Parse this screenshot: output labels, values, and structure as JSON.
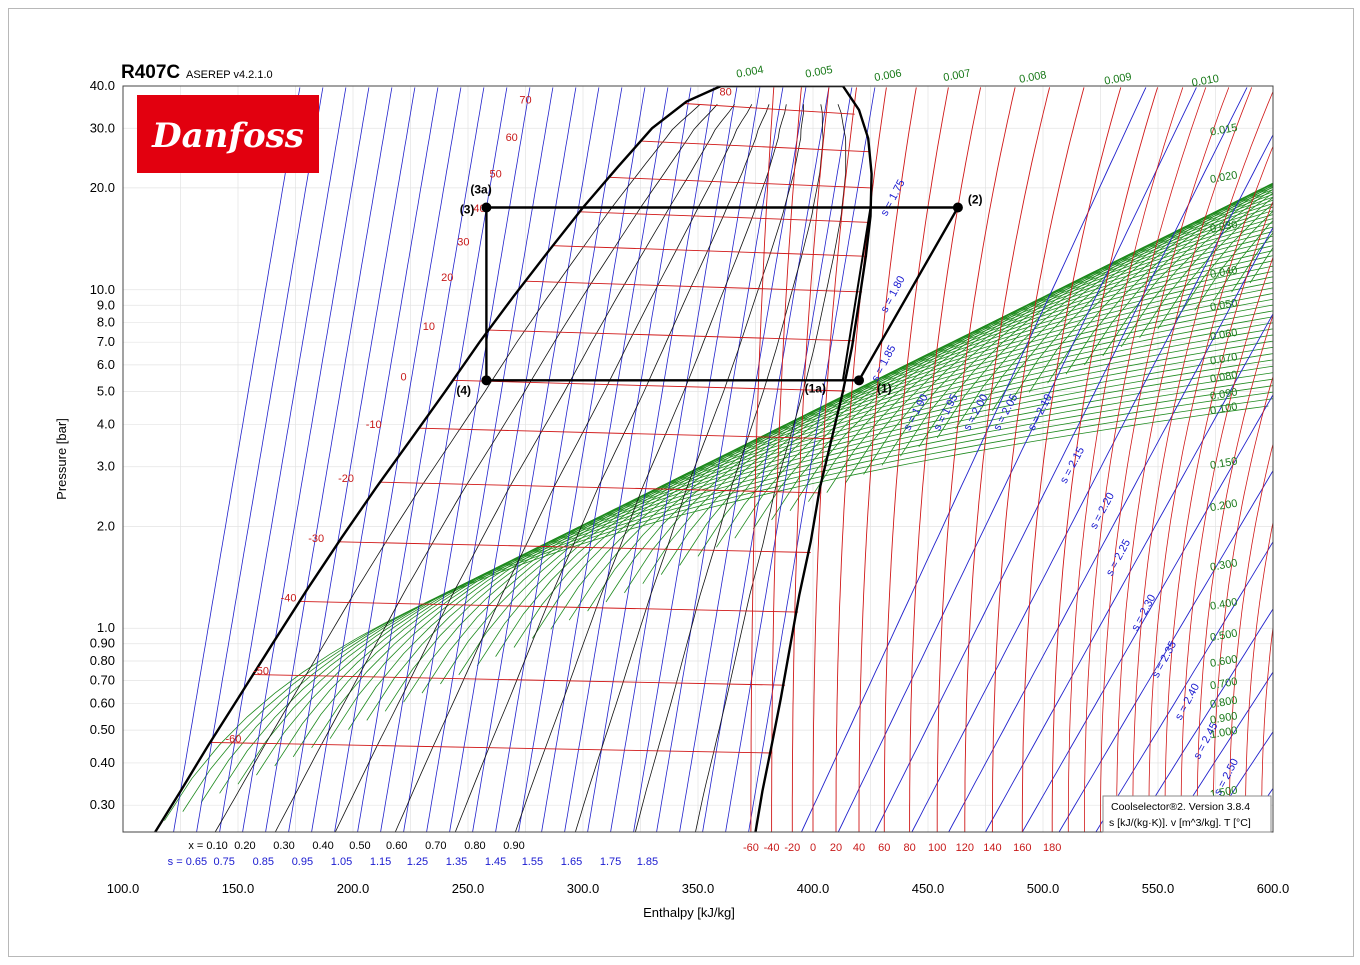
{
  "header": {
    "refrigerant": "R407C",
    "version": "ASEREP v4.2.1.0"
  },
  "logo": {
    "text": "Danfoss",
    "bg_color": "#e2000f",
    "text_color": "#ffffff"
  },
  "info_box": {
    "line1": "Coolselector®2. Version 3.8.4",
    "line2": "s [kJ/(kg·K)]. v [m^3/kg]. T [°C]"
  },
  "chart_data": {
    "type": "line",
    "title": "R407C",
    "xlabel": "Enthalpy [kJ/kg]",
    "ylabel": "Pressure [bar]",
    "xlim": [
      100,
      600
    ],
    "ylim": [
      0.25,
      40
    ],
    "y_scale": "log",
    "grid": true,
    "x_ticks": [
      "100.0",
      "150.0",
      "200.0",
      "250.0",
      "300.0",
      "350.0",
      "400.0",
      "450.0",
      "500.0",
      "550.0",
      "600.0"
    ],
    "y_ticks": [
      {
        "v": 40,
        "label": "40.0"
      },
      {
        "v": 30,
        "label": "30.0"
      },
      {
        "v": 20,
        "label": "20.0"
      },
      {
        "v": 10,
        "label": "10.0"
      },
      {
        "v": 9,
        "label": "9.0"
      },
      {
        "v": 8,
        "label": "8.0"
      },
      {
        "v": 7,
        "label": "7.0"
      },
      {
        "v": 6,
        "label": "6.0"
      },
      {
        "v": 5,
        "label": "5.0"
      },
      {
        "v": 4,
        "label": "4.0"
      },
      {
        "v": 3,
        "label": "3.0"
      },
      {
        "v": 2,
        "label": "2.0"
      },
      {
        "v": 1,
        "label": "1.0"
      },
      {
        "v": 0.9,
        "label": "0.90"
      },
      {
        "v": 0.8,
        "label": "0.80"
      },
      {
        "v": 0.7,
        "label": "0.70"
      },
      {
        "v": 0.6,
        "label": "0.60"
      },
      {
        "v": 0.5,
        "label": "0.50"
      },
      {
        "v": 0.4,
        "label": "0.40"
      },
      {
        "v": 0.3,
        "label": "0.30"
      }
    ],
    "saturation_dome": {
      "liquid": [
        [
          114,
          0.25
        ],
        [
          125,
          0.33
        ],
        [
          137,
          0.45
        ],
        [
          150,
          0.62
        ],
        [
          165,
          0.9
        ],
        [
          180,
          1.3
        ],
        [
          195,
          1.85
        ],
        [
          210,
          2.6
        ],
        [
          225,
          3.6
        ],
        [
          240,
          5.0
        ],
        [
          255,
          7.0
        ],
        [
          270,
          9.6
        ],
        [
          285,
          13.0
        ],
        [
          300,
          17.5
        ],
        [
          315,
          23
        ],
        [
          330,
          30
        ],
        [
          345,
          36
        ],
        [
          360,
          40
        ]
      ],
      "vapor": [
        [
          375,
          0.25
        ],
        [
          378,
          0.33
        ],
        [
          382,
          0.45
        ],
        [
          386,
          0.62
        ],
        [
          390,
          0.88
        ],
        [
          394,
          1.25
        ],
        [
          399,
          1.8
        ],
        [
          403,
          2.6
        ],
        [
          408,
          3.6
        ],
        [
          413,
          5.0
        ],
        [
          417,
          6.8
        ],
        [
          420,
          9.2
        ],
        [
          423,
          12.6
        ],
        [
          425,
          16.5
        ],
        [
          425.5,
          22
        ],
        [
          424,
          28
        ],
        [
          420,
          34
        ],
        [
          413,
          40
        ]
      ]
    },
    "quality_labels": [
      "x = 0.10",
      "0.20",
      "0.30",
      "0.40",
      "0.50",
      "0.60",
      "0.70",
      "0.80",
      "0.90"
    ],
    "quality_label_x": [
      137,
      153,
      170,
      187,
      203,
      219,
      236,
      253,
      270
    ],
    "entropy_bottom_labels": [
      "s = 0.65",
      "0.75",
      "0.85",
      "0.95",
      "1.05",
      "1.15",
      "1.25",
      "1.35",
      "1.45",
      "1.55",
      "1.65",
      "1.75",
      "1.85"
    ],
    "entropy_bottom_x": [
      128,
      144,
      161,
      178,
      195,
      212,
      228,
      245,
      262,
      278,
      295,
      312,
      328
    ],
    "entropy_line_labels": [
      {
        "label": "s = 1.75",
        "h": 436,
        "p": 18.5
      },
      {
        "label": "s = 1.80",
        "h": 436,
        "p": 9.6
      },
      {
        "label": "s = 1.85",
        "h": 432,
        "p": 6.0
      },
      {
        "label": "s = 1.90",
        "h": 446,
        "p": 4.3
      },
      {
        "label": "s = 1.95",
        "h": 459,
        "p": 4.3
      },
      {
        "label": "s = 2.00",
        "h": 472,
        "p": 4.3
      },
      {
        "label": "s = 2.05",
        "h": 485,
        "p": 4.3
      },
      {
        "label": "s = 2.10",
        "h": 500,
        "p": 4.3
      },
      {
        "label": "s = 2.15",
        "h": 514,
        "p": 3.0
      },
      {
        "label": "s = 2.20",
        "h": 527,
        "p": 2.2
      },
      {
        "label": "s = 2.25",
        "h": 534,
        "p": 1.6
      },
      {
        "label": "s = 2.30",
        "h": 545,
        "p": 1.1
      },
      {
        "label": "s = 2.35",
        "h": 554,
        "p": 0.8
      },
      {
        "label": "s = 2.40",
        "h": 564,
        "p": 0.6
      },
      {
        "label": "s = 2.45",
        "h": 572,
        "p": 0.46
      },
      {
        "label": "s = 2.50",
        "h": 581,
        "p": 0.36
      }
    ],
    "isotherm_labels": [
      {
        "label": "70",
        "h": 275,
        "p": 35.5
      },
      {
        "label": "60",
        "h": 269,
        "p": 27.5
      },
      {
        "label": "50",
        "h": 262,
        "p": 21.5
      },
      {
        "label": "40",
        "h": 255,
        "p": 17.0
      },
      {
        "label": "30",
        "h": 248,
        "p": 13.5
      },
      {
        "label": "20",
        "h": 241,
        "p": 10.6
      },
      {
        "label": "10",
        "h": 233,
        "p": 7.6
      },
      {
        "label": "0",
        "h": 222,
        "p": 5.4
      },
      {
        "label": "-10",
        "h": 209,
        "p": 3.9
      },
      {
        "label": "-20",
        "h": 197,
        "p": 2.7
      },
      {
        "label": "-30",
        "h": 184,
        "p": 1.8
      },
      {
        "label": "-40",
        "h": 172,
        "p": 1.2
      },
      {
        "label": "-50",
        "h": 160,
        "p": 0.73
      },
      {
        "label": "-60",
        "h": 148,
        "p": 0.46
      },
      {
        "label": "80",
        "h": 362,
        "p": 37.5
      }
    ],
    "temperature_bottom_labels": [
      "-60",
      "-40",
      "-20",
      "0",
      "20",
      "40",
      "60",
      "80",
      "100",
      "120",
      "140",
      "160",
      "180"
    ],
    "temperature_bottom_x": [
      373,
      382,
      391,
      400,
      410,
      420,
      431,
      442,
      454,
      466,
      478,
      491,
      504
    ],
    "volume_labels": [
      {
        "label": "0.004",
        "p": 43,
        "h": 365
      },
      {
        "label": "0.005",
        "p": 43,
        "h": 395
      },
      {
        "label": "0.006",
        "p": 42,
        "h": 425
      },
      {
        "label": "0.007",
        "p": 42,
        "h": 455
      },
      {
        "label": "0.008",
        "p": 41.5,
        "h": 488
      },
      {
        "label": "0.009",
        "p": 41,
        "h": 525
      },
      {
        "label": "0.010",
        "p": 40.5,
        "h": 563
      },
      {
        "label": "0.015",
        "p": 29,
        "h": 571
      },
      {
        "label": "0.020",
        "p": 21,
        "h": 571
      },
      {
        "label": "0.030",
        "p": 15,
        "h": 571
      },
      {
        "label": "0.040",
        "p": 11,
        "h": 571
      },
      {
        "label": "0.050",
        "p": 8.8,
        "h": 571
      },
      {
        "label": "0.060",
        "p": 7.2,
        "h": 571
      },
      {
        "label": "0.070",
        "p": 6.1,
        "h": 571
      },
      {
        "label": "0.080",
        "p": 5.4,
        "h": 571
      },
      {
        "label": "0.090",
        "p": 4.8,
        "h": 571
      },
      {
        "label": "0.100",
        "p": 4.35,
        "h": 571
      },
      {
        "label": "0.150",
        "p": 3.0,
        "h": 571
      },
      {
        "label": "0.200",
        "p": 2.25,
        "h": 571
      },
      {
        "label": "0.300",
        "p": 1.5,
        "h": 571
      },
      {
        "label": "0.400",
        "p": 1.15,
        "h": 571
      },
      {
        "label": "0.500",
        "p": 0.93,
        "h": 571
      },
      {
        "label": "0.600",
        "p": 0.78,
        "h": 571
      },
      {
        "label": "0.700",
        "p": 0.67,
        "h": 571
      },
      {
        "label": "0.800",
        "p": 0.59,
        "h": 571
      },
      {
        "label": "0.900",
        "p": 0.53,
        "h": 571
      },
      {
        "label": "1.000",
        "p": 0.48,
        "h": 571
      },
      {
        "label": "1.500",
        "p": 0.32,
        "h": 571
      }
    ],
    "cycle_points": [
      {
        "label": "(1)",
        "h": 420,
        "p": 5.4
      },
      {
        "label": "(1a)",
        "h": 412,
        "p": 5.4
      },
      {
        "label": "(2)",
        "h": 463,
        "p": 17.5
      },
      {
        "label": "(3)",
        "h": 258,
        "p": 17.5
      },
      {
        "label": "(3a)",
        "h": 258,
        "p": 17.5
      },
      {
        "label": "(4)",
        "h": 258,
        "p": 5.4
      }
    ],
    "cycle_path": [
      [
        258,
        5.4
      ],
      [
        258,
        17.5
      ],
      [
        463,
        17.5
      ],
      [
        420,
        5.4
      ],
      [
        258,
        5.4
      ]
    ],
    "dew_vertical": [
      [
        425,
        17.5
      ],
      [
        413,
        5.4
      ]
    ]
  }
}
